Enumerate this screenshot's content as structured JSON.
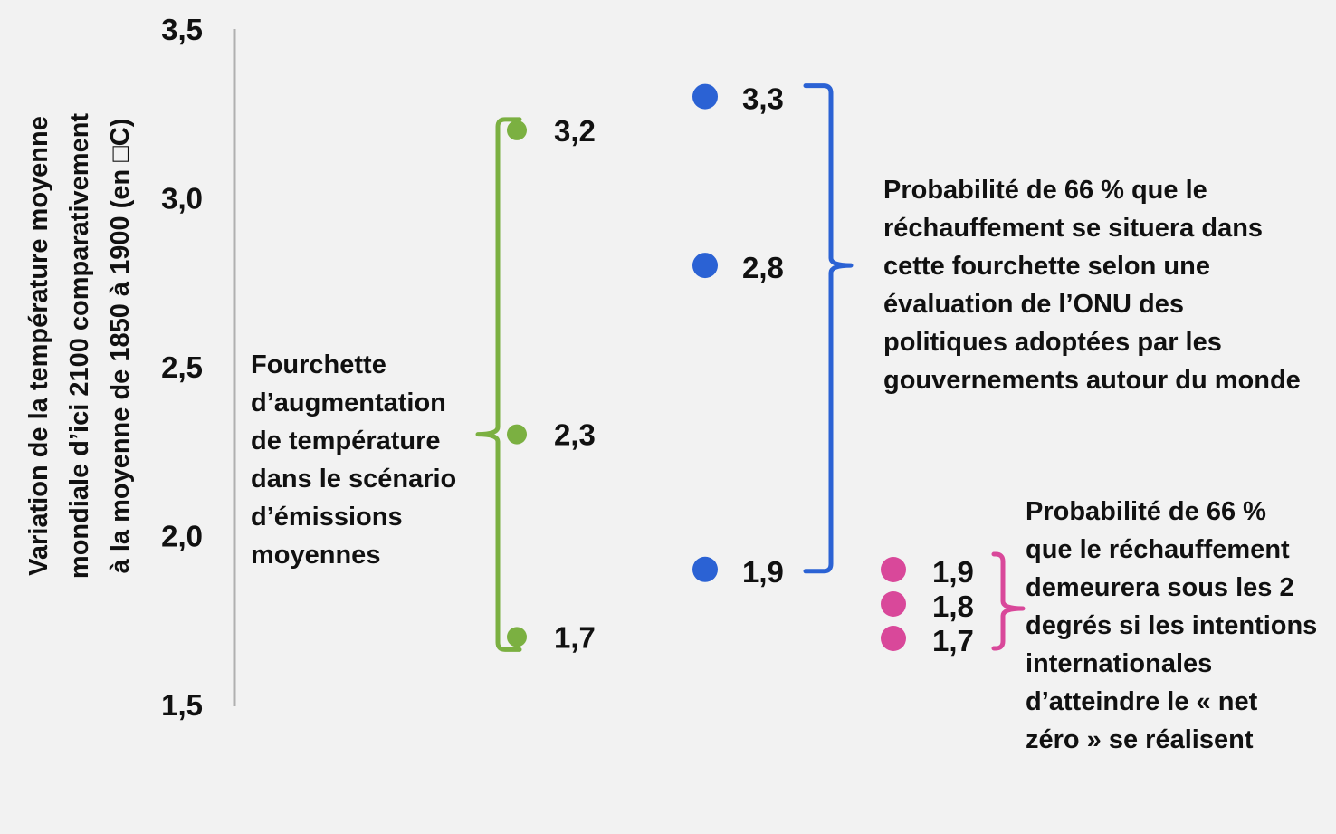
{
  "chart_data": {
    "type": "scatter",
    "ylabel_lines": [
      "Variation de la température moyenne",
      "mondiale d’ici 2100 comparativement",
      "à la moyenne de 1850 à 1900 (en □C)"
    ],
    "ylim": [
      1.5,
      3.5
    ],
    "yticks": [
      {
        "value": 3.5,
        "label": "3,5"
      },
      {
        "value": 3.0,
        "label": "3,0"
      },
      {
        "value": 2.5,
        "label": "2,5"
      },
      {
        "value": 2.0,
        "label": "2,0"
      },
      {
        "value": 1.5,
        "label": "1,5"
      }
    ],
    "grid": false,
    "legend": "none",
    "series": [
      {
        "color": "#7bb041",
        "points": [
          {
            "value": 3.2,
            "label": "3,2"
          },
          {
            "value": 2.3,
            "label": "2,3"
          },
          {
            "value": 1.7,
            "label": "1,7"
          }
        ],
        "bracket_side": "left",
        "annotation_lines": [
          "Fourchette",
          "d’augmentation",
          "de température",
          "dans le scénario",
          "d’émissions",
          "moyennes"
        ]
      },
      {
        "color": "#2b62d4",
        "points": [
          {
            "value": 3.3,
            "label": "3,3"
          },
          {
            "value": 2.8,
            "label": "2,8"
          },
          {
            "value": 1.9,
            "label": "1,9"
          }
        ],
        "bracket_side": "right",
        "annotation_lines": [
          "Probabilité de 66 % que le",
          "réchauffement se situera dans",
          "cette fourchette selon une",
          "évaluation de l’ONU des",
          "politiques adoptées par les",
          "gouvernements autour du monde"
        ]
      },
      {
        "color": "#d9489a",
        "points": [
          {
            "value": 1.9,
            "label": "1,9"
          },
          {
            "value": 1.8,
            "label": "1,8"
          },
          {
            "value": 1.7,
            "label": "1,7"
          }
        ],
        "bracket_side": "right",
        "annotation_lines": [
          "Probabilité de 66 %",
          "que le réchauffement",
          "demeurera sous les 2",
          "degrés si les intentions",
          "internationales",
          "d’atteindre le « net",
          "zéro » se réalisent"
        ]
      }
    ]
  }
}
